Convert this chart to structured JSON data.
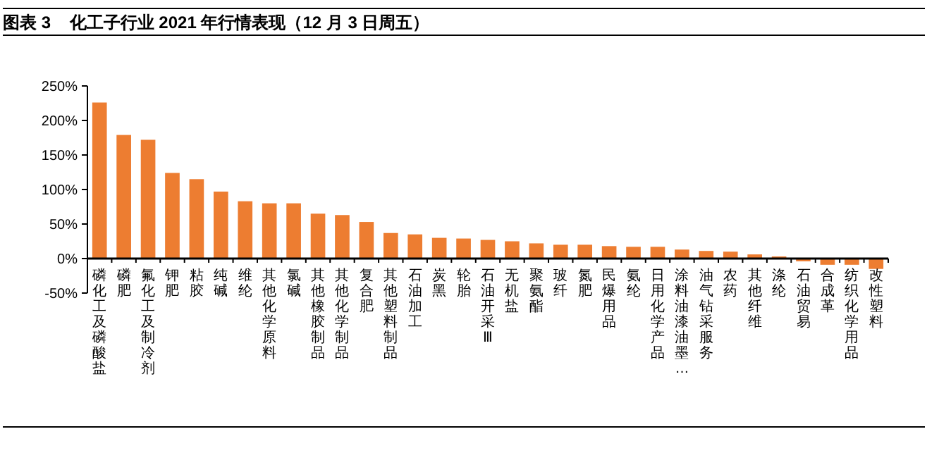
{
  "chart_data": {
    "type": "bar",
    "title": "图表 3    化工子行业 2021 年行情表现（12 月 3 日周五）",
    "categories": [
      "磷化工及磷酸盐",
      "磷肥",
      "氟化工及制冷剂",
      "钾肥",
      "粘胶",
      "纯碱",
      "维纶",
      "其他化学原料",
      "氯碱",
      "其他橡胶制品",
      "其他化学制品",
      "复合肥",
      "其他塑料制品",
      "石油加工",
      "炭黑",
      "轮胎",
      "石油开采Ⅲ",
      "无机盐",
      "聚氨酯",
      "玻纤",
      "氮肥",
      "民爆用品",
      "氨纶",
      "日用化学产品",
      "涂料油漆油墨…",
      "油气钻采服务",
      "农药",
      "其他纤维",
      "涤纶",
      "石油贸易",
      "合成革",
      "纺织化学用品",
      "改性塑料"
    ],
    "values": [
      226,
      179,
      172,
      124,
      115,
      97,
      83,
      80,
      80,
      65,
      63,
      53,
      37,
      35,
      30,
      29,
      27,
      25,
      22,
      20,
      20,
      18,
      17,
      17,
      13,
      11,
      10,
      6,
      3,
      -4,
      -9,
      -9,
      -15
    ],
    "color": "#ed7d31",
    "ylim": [
      -50,
      250
    ],
    "yticks": [
      {
        "value": -50,
        "label": "-50%"
      },
      {
        "value": 0,
        "label": "0%"
      },
      {
        "value": 50,
        "label": "50%"
      },
      {
        "value": 100,
        "label": "100%"
      },
      {
        "value": 150,
        "label": "150%"
      },
      {
        "value": 200,
        "label": "200%"
      },
      {
        "value": 250,
        "label": "250%"
      }
    ],
    "grid": false
  }
}
